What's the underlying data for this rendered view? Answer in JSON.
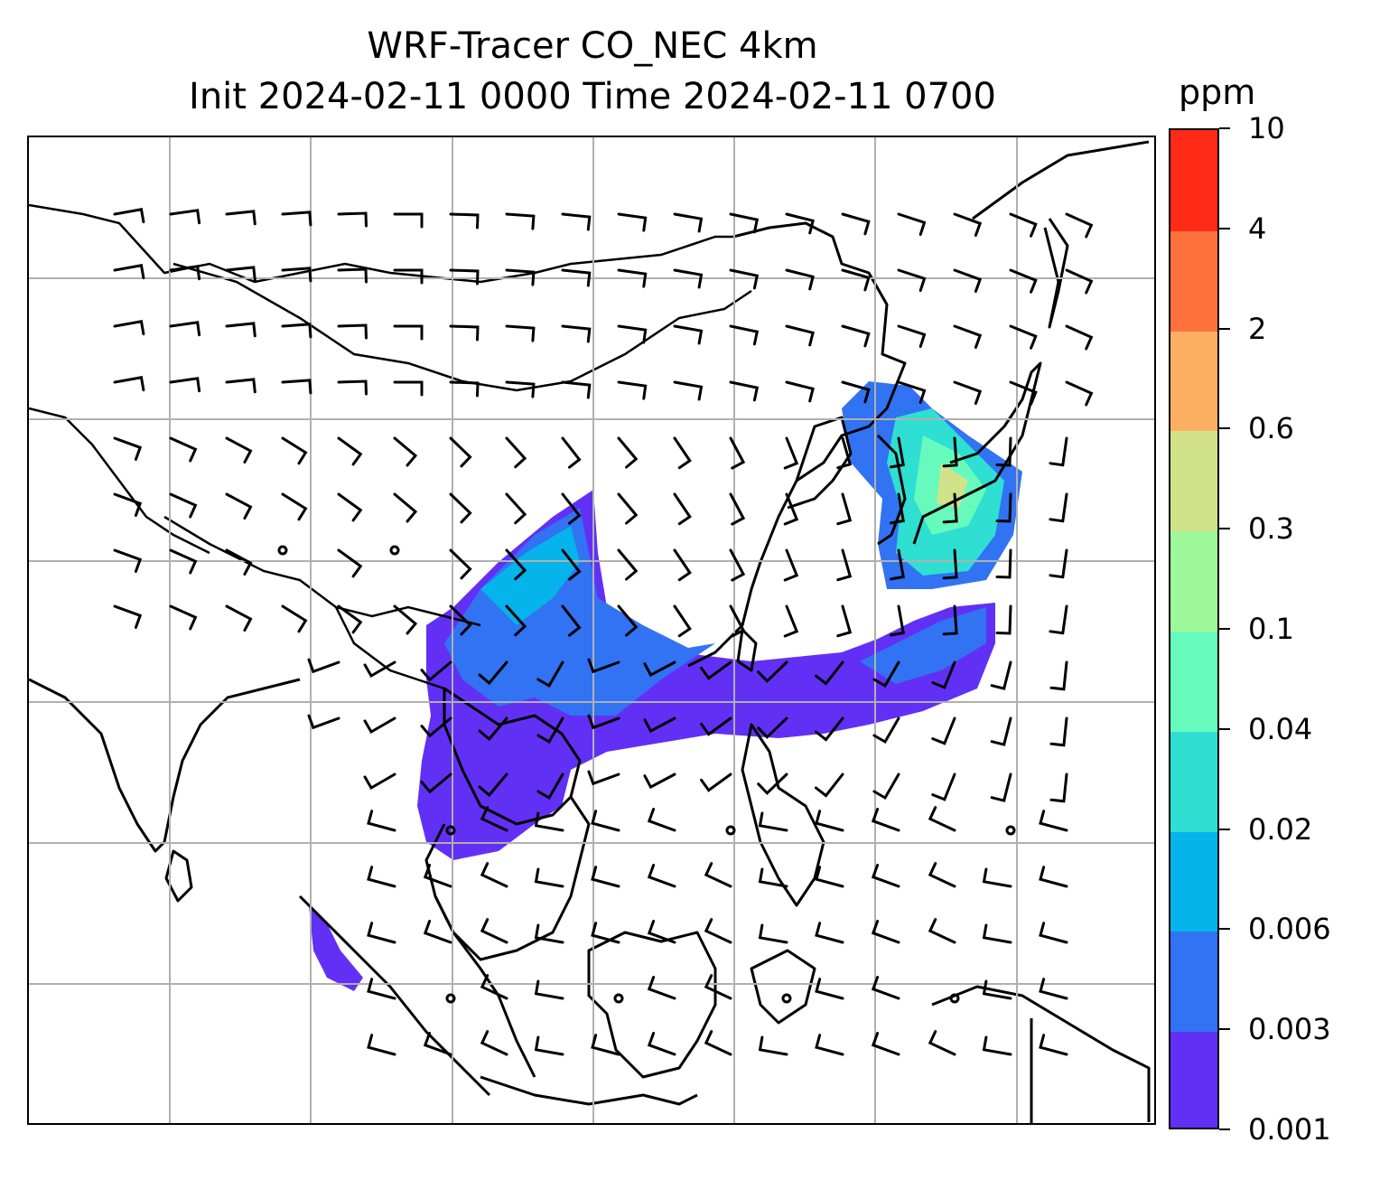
{
  "title": {
    "line1": "WRF-Tracer CO_NEC 4km",
    "line2": "Init 2024-02-11 0000 Time 2024-02-11 0700"
  },
  "colorbar": {
    "unit": "ppm",
    "levels": [
      "0.001",
      "0.003",
      "0.006",
      "0.02",
      "0.04",
      "0.1",
      "0.3",
      "0.6",
      "2",
      "4",
      "10"
    ],
    "colors": [
      "#6230f5",
      "#3173f3",
      "#04b4ea",
      "#2edfd2",
      "#66fbbc",
      "#9ff99a",
      "#d1e289",
      "#fdb062",
      "#ff713c",
      "#ff2b16"
    ]
  },
  "map": {
    "type": "contour-filled tracer concentration with wind barbs and coastlines",
    "gridlines": true,
    "plume_color_levels": [
      "0.001",
      "0.003",
      "0.006",
      "0.02",
      "0.04",
      "0.1"
    ]
  }
}
